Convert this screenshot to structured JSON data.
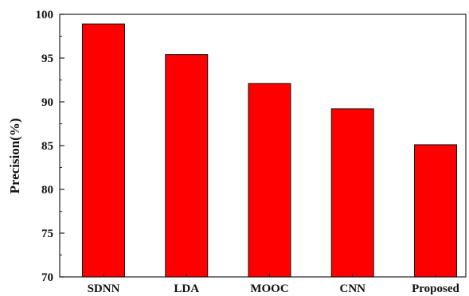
{
  "chart_data": {
    "type": "bar",
    "categories": [
      "SDNN",
      "LDA",
      "MOOC",
      "CNN",
      "Proposed"
    ],
    "values": [
      98.9,
      95.4,
      92.1,
      89.2,
      85.1
    ],
    "title": "",
    "xlabel": "",
    "ylabel": "Precision(%)",
    "ylim": [
      70,
      100
    ],
    "yticks": [
      70,
      75,
      80,
      85,
      90,
      95,
      100
    ],
    "grid": false,
    "legend": "none",
    "bar_color": "#ff0000",
    "bar_edge_color": "#111111"
  }
}
